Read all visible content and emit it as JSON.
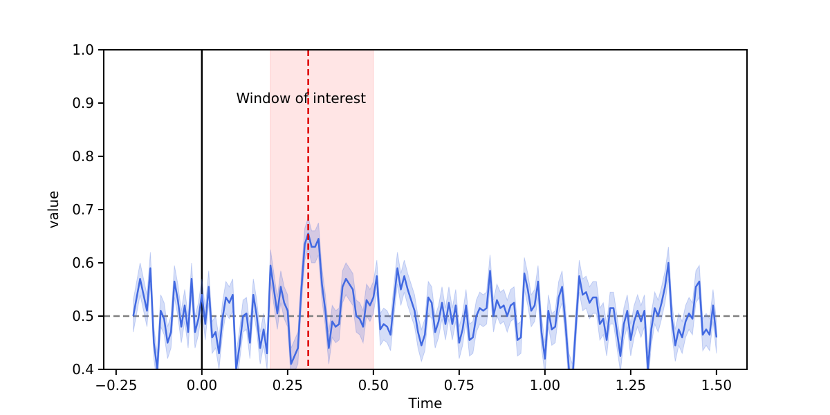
{
  "chart_data": {
    "type": "line",
    "xlabel": "Time",
    "ylabel": "value",
    "xlim": [
      -0.286,
      1.589
    ],
    "ylim": [
      0.4,
      1.0
    ],
    "xticks": [
      {
        "value": -0.25,
        "label": "−0.25"
      },
      {
        "value": 0,
        "label": "0.00"
      },
      0.25,
      {
        "value": 0.5,
        "label": "0.50"
      },
      0.75,
      {
        "value": 1,
        "label": "1.00"
      },
      1.25,
      {
        "value": 1.5,
        "label": "1.50"
      }
    ],
    "yticks": [
      0.4,
      0.5,
      0.6,
      0.7,
      0.8,
      0.9,
      {
        "value": 1.0,
        "label": "1.0"
      }
    ],
    "error": 0.03,
    "band_color": "#4169e1",
    "x": [
      -0.2,
      -0.19,
      -0.18,
      -0.17,
      -0.16,
      -0.15,
      -0.14,
      -0.13,
      -0.12,
      -0.11,
      -0.1,
      -0.09,
      -0.08,
      -0.07,
      -0.06,
      -0.05,
      -0.04,
      -0.03,
      -0.02,
      -0.01,
      0,
      0.01,
      0.02,
      0.03,
      0.04,
      0.05,
      0.06,
      0.07,
      0.08,
      0.09,
      0.1,
      0.11,
      0.12,
      0.13,
      0.14,
      0.15,
      0.16,
      0.17,
      0.18,
      0.19,
      0.2,
      0.21,
      0.22,
      0.23,
      0.24,
      0.25,
      0.26,
      0.27,
      0.28,
      0.29,
      0.3,
      0.31,
      0.32,
      0.33,
      0.34,
      0.35,
      0.36,
      0.37,
      0.38,
      0.39,
      0.4,
      0.41,
      0.42,
      0.43,
      0.44,
      0.45,
      0.46,
      0.47,
      0.48,
      0.49,
      0.5,
      0.51,
      0.52,
      0.53,
      0.54,
      0.55,
      0.56,
      0.57,
      0.58,
      0.59,
      0.6,
      0.61,
      0.62,
      0.63,
      0.64,
      0.65,
      0.66,
      0.67,
      0.68,
      0.69,
      0.7,
      0.71,
      0.72,
      0.73,
      0.74,
      0.75,
      0.76,
      0.77,
      0.78,
      0.79,
      0.8,
      0.81,
      0.82,
      0.83,
      0.84,
      0.85,
      0.86,
      0.87,
      0.88,
      0.89,
      0.9,
      0.91,
      0.92,
      0.93,
      0.94,
      0.95,
      0.96,
      0.97,
      0.98,
      0.99,
      1,
      1.01,
      1.02,
      1.03,
      1.04,
      1.05,
      1.06,
      1.07,
      1.08,
      1.09,
      1.1,
      1.11,
      1.12,
      1.13,
      1.14,
      1.15,
      1.16,
      1.17,
      1.18,
      1.19,
      1.2,
      1.21,
      1.22,
      1.23,
      1.24,
      1.25,
      1.26,
      1.27,
      1.28,
      1.29,
      1.3,
      1.31,
      1.32,
      1.33,
      1.34,
      1.35,
      1.36,
      1.37,
      1.38,
      1.39,
      1.4,
      1.41,
      1.42,
      1.43,
      1.44,
      1.45,
      1.46,
      1.47,
      1.48,
      1.49,
      1.5
    ],
    "series": [
      {
        "color": "#4169e1",
        "values": [
          0.5,
          0.535,
          0.57,
          0.54,
          0.51,
          0.59,
          0.45,
          0.4,
          0.51,
          0.495,
          0.45,
          0.47,
          0.565,
          0.53,
          0.48,
          0.52,
          0.47,
          0.57,
          0.47,
          0.495,
          0.54,
          0.485,
          0.555,
          0.46,
          0.47,
          0.43,
          0.495,
          0.535,
          0.525,
          0.54,
          0.4,
          0.445,
          0.5,
          0.505,
          0.45,
          0.54,
          0.5,
          0.44,
          0.475,
          0.43,
          0.595,
          0.55,
          0.505,
          0.555,
          0.525,
          0.51,
          0.41,
          0.425,
          0.44,
          0.55,
          0.635,
          0.655,
          0.63,
          0.63,
          0.645,
          0.56,
          0.51,
          0.44,
          0.49,
          0.48,
          0.485,
          0.555,
          0.57,
          0.56,
          0.55,
          0.5,
          0.495,
          0.48,
          0.53,
          0.52,
          0.535,
          0.575,
          0.475,
          0.485,
          0.48,
          0.465,
          0.53,
          0.59,
          0.55,
          0.575,
          0.55,
          0.53,
          0.51,
          0.47,
          0.445,
          0.465,
          0.535,
          0.525,
          0.47,
          0.49,
          0.525,
          0.485,
          0.525,
          0.485,
          0.52,
          0.45,
          0.475,
          0.52,
          0.455,
          0.46,
          0.5,
          0.515,
          0.51,
          0.515,
          0.585,
          0.5,
          0.53,
          0.515,
          0.52,
          0.5,
          0.52,
          0.525,
          0.455,
          0.46,
          0.58,
          0.55,
          0.51,
          0.52,
          0.565,
          0.47,
          0.42,
          0.51,
          0.475,
          0.48,
          0.535,
          0.555,
          0.485,
          0.4,
          0.38,
          0.48,
          0.575,
          0.54,
          0.545,
          0.525,
          0.535,
          0.535,
          0.485,
          0.495,
          0.455,
          0.515,
          0.515,
          0.47,
          0.425,
          0.485,
          0.51,
          0.455,
          0.49,
          0.51,
          0.49,
          0.51,
          0.4,
          0.475,
          0.515,
          0.5,
          0.525,
          0.555,
          0.6,
          0.495,
          0.445,
          0.475,
          0.46,
          0.49,
          0.505,
          0.495,
          0.555,
          0.565,
          0.465,
          0.475,
          0.465,
          0.52,
          0.46
        ]
      }
    ],
    "window": [
      0.2,
      0.5
    ],
    "window_color": "#ff9999",
    "event_line": 0,
    "event_color": "#000000",
    "peak_line": 0.31,
    "peak_color": "#dd0000",
    "baseline": 0.5,
    "baseline_color": "#808080",
    "annotation": {
      "text": "Window of interest",
      "x": 0.1,
      "y": 0.9
    }
  }
}
